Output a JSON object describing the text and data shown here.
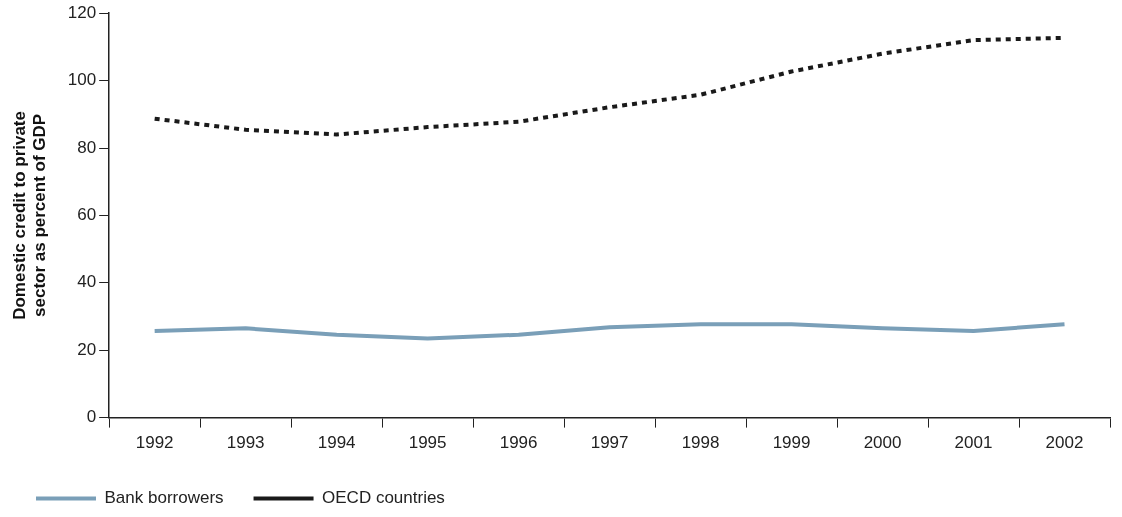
{
  "chart_data": {
    "type": "line",
    "ylabel": "Domestic credit to private sector as percent of GDP",
    "categories": [
      "1992",
      "1993",
      "1994",
      "1995",
      "1996",
      "1997",
      "1998",
      "1999",
      "2000",
      "2001",
      "2002"
    ],
    "series": [
      {
        "name": "Bank borrowers",
        "color": "#7a9fb8",
        "line_style": "solid",
        "values": [
          25.7,
          26.5,
          24.6,
          23.5,
          24.6,
          26.8,
          27.7,
          27.7,
          26.5,
          25.7,
          27.7
        ]
      },
      {
        "name": "OECD countries",
        "color": "#1a1a1a",
        "line_style": "dotted",
        "values": [
          88.7,
          85.4,
          84,
          86.2,
          87.8,
          92.1,
          95.8,
          102.7,
          108,
          112,
          112.7
        ]
      }
    ],
    "ylim": [
      0,
      120
    ],
    "yticks": [
      0,
      20,
      40,
      60,
      80,
      100,
      120
    ],
    "grid": false,
    "legend": "bottom left",
    "marker": "none"
  }
}
